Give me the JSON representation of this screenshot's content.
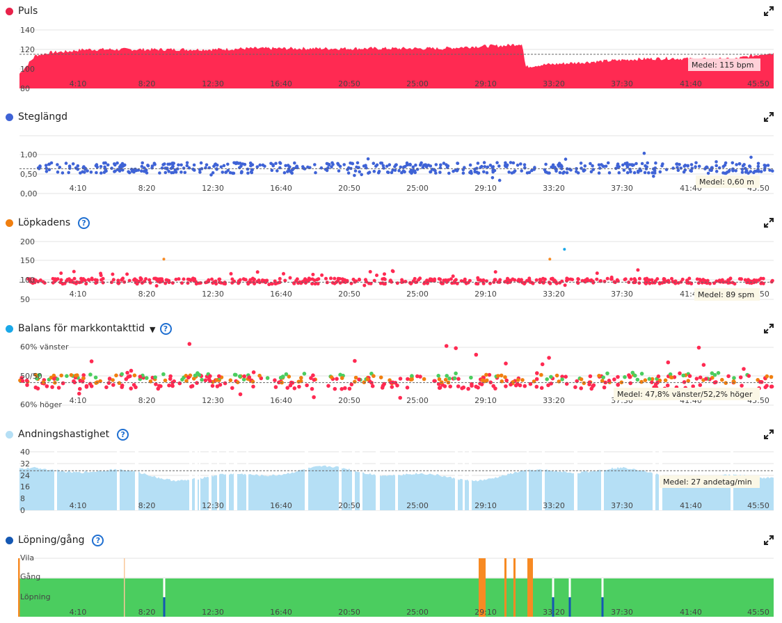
{
  "x_ticks": [
    "4:10",
    "8:20",
    "12:30",
    "16:40",
    "20:50",
    "25:00",
    "29:10",
    "33:20",
    "37:30",
    "41:40",
    "45:50"
  ],
  "colors": {
    "pulse": "#ff2a52",
    "stride": "#3f63d6",
    "cadence": "#f07f10",
    "balance": "#1aa8e8",
    "breath": "#b5dff5",
    "runwalk": "#1558b3",
    "green": "#4bcd5f",
    "orange": "#f78a23"
  },
  "panels": {
    "pulse": {
      "title": "Puls",
      "mean_label": "Medel: 115 bpm"
    },
    "stride": {
      "title": "Steglängd",
      "mean_label": "Medel: 0,60 m"
    },
    "cadence": {
      "title": "Löpkadens",
      "mean_label": "Medel: 89 spm"
    },
    "balance": {
      "title": "Balans för markkontakttid",
      "mean_label": "Medel: 47,8% vänster/52,2% höger"
    },
    "breath": {
      "title": "Andningshastighet",
      "mean_label": "Medel: 27 andetag/min"
    },
    "runwalk": {
      "title": "Löpning/gång"
    }
  },
  "chart_data": [
    {
      "type": "area",
      "title": "Puls",
      "ylabel": "bpm",
      "ylim": [
        80,
        140
      ],
      "yticks": [
        "140",
        "120",
        "100",
        "80"
      ],
      "mean": 115,
      "x_minutes": [
        0,
        1,
        2,
        3,
        4,
        5,
        6,
        8,
        10,
        12,
        14,
        16,
        18,
        20,
        22,
        24,
        26,
        28,
        30,
        31,
        31.2,
        32,
        34,
        36,
        38,
        40,
        42,
        44,
        46
      ],
      "values": [
        95,
        114,
        117,
        118,
        120,
        120,
        120,
        120,
        120,
        120,
        121,
        121,
        121,
        121,
        121,
        121,
        121,
        123,
        124,
        126,
        102,
        104,
        106,
        108,
        110,
        111,
        110,
        110,
        116
      ]
    },
    {
      "type": "scatter",
      "title": "Steglängd",
      "ylabel": "m",
      "ylim": [
        0,
        1.4
      ],
      "yticks": [
        "1,00",
        "0,50",
        "0,00"
      ],
      "mean": 0.6,
      "mean_value": "0,60 m",
      "x_range_minutes": [
        0,
        46
      ],
      "typical_range": [
        0.45,
        0.85
      ]
    },
    {
      "type": "scatter",
      "title": "Löpkadens",
      "ylabel": "spm",
      "ylim": [
        40,
        205
      ],
      "yticks": [
        "200",
        "150",
        "100",
        "50"
      ],
      "mean": 89,
      "mean_value": "89 spm",
      "x_range_minutes": [
        0,
        46
      ],
      "typical_range": [
        75,
        110
      ],
      "outliers": [
        {
          "x": 8.9,
          "y": 155,
          "color": "orange"
        },
        {
          "x": 32.7,
          "y": 155,
          "color": "orange"
        },
        {
          "x": 33.6,
          "y": 183,
          "color": "balance"
        }
      ]
    },
    {
      "type": "scatter",
      "title": "Balans för markkontakttid",
      "yticks": [
        "60% vänster",
        "50/50",
        "60% höger"
      ],
      "ylim": [
        40,
        60
      ],
      "mean_left_pct": 47.8,
      "mean_right_pct": 52.2,
      "series_colors": [
        "#ff2a52",
        "#f07f10",
        "#4bcd5f"
      ]
    },
    {
      "type": "bar",
      "title": "Andningshastighet",
      "ylabel": "andetag/min",
      "ylim": [
        0,
        40
      ],
      "yticks": [
        "40",
        "32",
        "24",
        "16",
        "8",
        "0"
      ],
      "mean": 27,
      "x_range_minutes": [
        0,
        46
      ]
    },
    {
      "type": "area",
      "title": "Löpning/gång",
      "categories": [
        "Vila",
        "Gång",
        "Löpning"
      ],
      "dominant": "Gång",
      "orange_bars_minutes": [
        27.7,
        27.9,
        29.2,
        29.7,
        30.8,
        31.0
      ],
      "blue_ticks_minutes": [
        8.7,
        32.0,
        33.2,
        35.1
      ]
    }
  ]
}
